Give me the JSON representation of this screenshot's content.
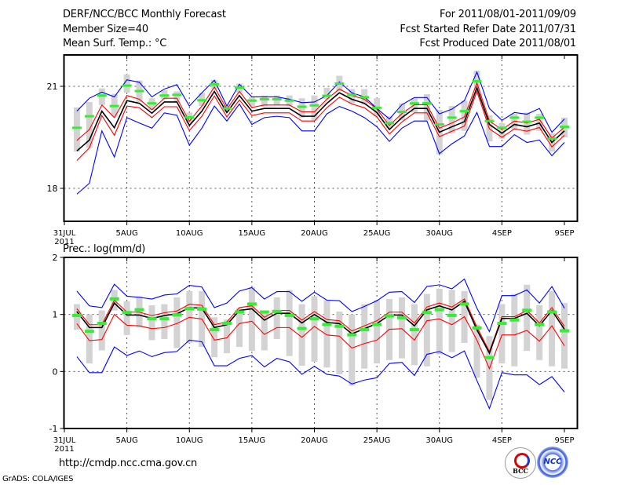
{
  "header": {
    "title": "DERF/NCC/BCC Monthly Forecast",
    "member_size": "Member Size=40",
    "variable": "Mean Surf. Temp.: °C",
    "period": "For 2011/08/01-2011/09/09",
    "started": "Fcst Started Refer Date 2011/07/31",
    "produced": "Fcst Produced Date 2011/08/01"
  },
  "footer": {
    "url": "http://cmdp.ncc.cma.gov.cn",
    "grads": "GrADS: COLA/IGES",
    "logos": [
      "BCC",
      "NCC"
    ]
  },
  "colors": {
    "mean": "#000000",
    "std": "#ff0000",
    "range": "#0000ff",
    "obs": "#33ee33",
    "clim": "#d3d3d3",
    "grid": "#555555"
  },
  "chart_data": [
    {
      "type": "line",
      "title": "Mean Surf. Temp.: °C",
      "xlabel": "",
      "ylabel": "",
      "x_tick_labels": [
        "31JUL",
        "5AUG",
        "10AUG",
        "15AUG",
        "20AUG",
        "25AUG",
        "30AUG",
        "4SEP",
        "9SEP"
      ],
      "x_year_label": "2011",
      "y_tick_labels": [
        "21",
        "18"
      ],
      "y_ticks": [
        21,
        18
      ],
      "ylim": [
        17.03,
        21.92
      ],
      "x_days_from_31jul": [
        1,
        40
      ],
      "grid": true,
      "series": [
        {
          "name": "ensemble max",
          "color": "#0000ff",
          "values": [
            20.27,
            20.65,
            20.83,
            20.69,
            21.19,
            21.12,
            20.69,
            20.92,
            21.05,
            20.42,
            20.81,
            21.18,
            20.42,
            21.06,
            20.69,
            20.69,
            20.69,
            20.62,
            20.52,
            20.54,
            20.73,
            21.13,
            20.81,
            20.69,
            20.35,
            20.04,
            20.46,
            20.67,
            20.67,
            20.19,
            20.33,
            20.58,
            21.42,
            20.35,
            20.0,
            20.23,
            20.18,
            20.35,
            19.65,
            20.04
          ]
        },
        {
          "name": "ensemble min",
          "color": "#0000ff",
          "values": [
            17.83,
            18.15,
            19.69,
            18.92,
            20.08,
            19.92,
            19.77,
            20.22,
            20.15,
            19.27,
            19.77,
            20.42,
            19.98,
            20.48,
            19.88,
            20.08,
            20.12,
            20.08,
            19.69,
            19.69,
            20.19,
            20.41,
            20.27,
            20.08,
            19.81,
            19.38,
            19.77,
            19.98,
            19.98,
            19.02,
            19.31,
            19.54,
            20.23,
            19.23,
            19.23,
            19.58,
            19.35,
            19.42,
            18.96,
            19.35
          ]
        },
        {
          "name": "mean + std",
          "color": "#ff0000",
          "values": [
            19.41,
            19.73,
            20.45,
            20.08,
            20.73,
            20.62,
            20.31,
            20.65,
            20.65,
            19.97,
            20.42,
            20.98,
            20.33,
            20.85,
            20.38,
            20.45,
            20.45,
            20.45,
            20.25,
            20.25,
            20.62,
            20.92,
            20.73,
            20.62,
            20.33,
            19.85,
            20.2,
            20.46,
            20.46,
            19.77,
            19.92,
            20.1,
            21.1,
            19.98,
            19.73,
            19.98,
            19.92,
            20.03,
            19.48,
            19.8
          ]
        },
        {
          "name": "mean - std",
          "color": "#ff0000",
          "values": [
            18.82,
            19.19,
            20.14,
            19.56,
            20.42,
            20.37,
            20.08,
            20.4,
            20.4,
            19.7,
            20.12,
            20.72,
            20.1,
            20.6,
            20.14,
            20.22,
            20.22,
            20.22,
            19.98,
            19.98,
            20.37,
            20.68,
            20.48,
            20.37,
            20.1,
            19.6,
            19.95,
            20.22,
            20.22,
            19.52,
            19.68,
            19.83,
            20.85,
            19.75,
            19.5,
            19.75,
            19.68,
            19.79,
            19.22,
            19.56
          ]
        },
        {
          "name": "ensemble mean",
          "color": "#000000",
          "values": [
            19.1,
            19.42,
            20.27,
            19.78,
            20.58,
            20.5,
            20.21,
            20.54,
            20.54,
            19.85,
            20.27,
            20.85,
            20.23,
            20.73,
            20.27,
            20.35,
            20.35,
            20.35,
            20.12,
            20.12,
            20.5,
            20.81,
            20.62,
            20.5,
            20.23,
            19.73,
            20.08,
            20.35,
            20.35,
            19.65,
            19.81,
            19.96,
            20.96,
            19.88,
            19.62,
            19.88,
            19.81,
            19.92,
            19.35,
            19.69
          ]
        }
      ],
      "obs": [
        19.78,
        20.12,
        20.73,
        20.42,
        21.02,
        20.86,
        20.5,
        20.73,
        20.75,
        20.09,
        20.59,
        21.06,
        20.35,
        20.96,
        20.58,
        20.62,
        20.62,
        20.58,
        20.4,
        20.44,
        20.72,
        21.08,
        20.75,
        20.68,
        20.37,
        19.92,
        20.25,
        20.5,
        20.5,
        19.88,
        20.08,
        20.27,
        21.15,
        19.98,
        19.78,
        20.08,
        19.96,
        20.08,
        19.46,
        19.81
      ],
      "clim_hi": [
        20.38,
        20.54,
        20.94,
        20.78,
        21.35,
        21.17,
        20.65,
        20.88,
        20.85,
        20.23,
        20.81,
        21.19,
        20.45,
        21.08,
        20.69,
        20.73,
        20.73,
        20.73,
        20.65,
        20.73,
        20.96,
        21.31,
        20.92,
        20.92,
        20.65,
        20.12,
        20.5,
        20.65,
        20.77,
        20.31,
        20.42,
        20.58,
        21.46,
        20.15,
        19.92,
        20.19,
        20.23,
        20.19,
        19.62,
        20.08
      ],
      "clim_lo": [
        19.08,
        19.19,
        20.45,
        20.12,
        20.81,
        20.54,
        20.31,
        20.62,
        20.54,
        19.92,
        20.42,
        20.92,
        20.23,
        20.81,
        20.42,
        20.42,
        20.46,
        20.42,
        20.08,
        20.0,
        20.62,
        20.85,
        20.5,
        20.46,
        20.12,
        19.77,
        20.0,
        20.23,
        20.0,
        19.0,
        19.62,
        19.69,
        20.88,
        19.38,
        19.46,
        19.73,
        19.58,
        19.69,
        19.08,
        19.5
      ]
    },
    {
      "type": "line",
      "title": "Prec.: log(mm/d)",
      "xlabel": "",
      "ylabel": "",
      "x_tick_labels": [
        "31JUL",
        "5AUG",
        "10AUG",
        "15AUG",
        "20AUG",
        "25AUG",
        "30AUG",
        "4SEP",
        "9SEP"
      ],
      "x_year_label": "2011",
      "y_tick_labels": [
        "2",
        "1",
        "0",
        "-1"
      ],
      "y_ticks": [
        2,
        1,
        0,
        -1
      ],
      "ylim": [
        -1,
        2
      ],
      "x_days_from_31jul": [
        1,
        40
      ],
      "grid": true,
      "series": [
        {
          "name": "ensemble max",
          "color": "#0000ff",
          "values": [
            1.41,
            1.15,
            1.12,
            1.53,
            1.32,
            1.3,
            1.27,
            1.34,
            1.36,
            1.51,
            1.48,
            1.12,
            1.2,
            1.41,
            1.47,
            1.27,
            1.4,
            1.4,
            1.23,
            1.39,
            1.25,
            1.24,
            1.05,
            1.14,
            1.24,
            1.39,
            1.4,
            1.21,
            1.49,
            1.52,
            1.45,
            1.62,
            1.11,
            0.7,
            1.33,
            1.33,
            1.43,
            1.2,
            1.49,
            1.11
          ]
        },
        {
          "name": "ensemble min",
          "color": "#0000ff",
          "values": [
            0.26,
            -0.02,
            -0.02,
            0.43,
            0.28,
            0.36,
            0.26,
            0.33,
            0.35,
            0.55,
            0.52,
            0.1,
            0.1,
            0.23,
            0.28,
            0.08,
            0.23,
            0.17,
            -0.05,
            0.09,
            -0.05,
            -0.08,
            -0.22,
            -0.15,
            -0.11,
            0.14,
            0.16,
            -0.07,
            0.3,
            0.35,
            0.24,
            0.36,
            -0.16,
            -0.65,
            -0.02,
            -0.06,
            -0.06,
            -0.23,
            -0.09,
            -0.36
          ]
        },
        {
          "name": "mean + std",
          "color": "#ff0000",
          "values": [
            1.1,
            0.82,
            0.82,
            1.25,
            1.04,
            1.04,
            0.98,
            1.03,
            1.06,
            1.18,
            1.16,
            0.82,
            0.87,
            1.12,
            1.15,
            0.95,
            1.07,
            1.07,
            0.9,
            1.05,
            0.91,
            0.89,
            0.71,
            0.8,
            0.89,
            1.04,
            1.04,
            0.85,
            1.13,
            1.2,
            1.13,
            1.27,
            0.78,
            0.35,
            0.96,
            0.96,
            1.07,
            0.85,
            1.12,
            0.79
          ]
        },
        {
          "name": "mean - std",
          "color": "#ff0000",
          "values": [
            0.84,
            0.54,
            0.56,
            1.0,
            0.81,
            0.8,
            0.75,
            0.77,
            0.84,
            0.95,
            0.92,
            0.55,
            0.59,
            0.84,
            0.88,
            0.65,
            0.77,
            0.77,
            0.6,
            0.79,
            0.64,
            0.62,
            0.41,
            0.49,
            0.55,
            0.74,
            0.75,
            0.55,
            0.89,
            0.92,
            0.82,
            0.96,
            0.55,
            0.05,
            0.64,
            0.64,
            0.72,
            0.53,
            0.8,
            0.45
          ]
        },
        {
          "name": "ensemble mean",
          "color": "#000000",
          "values": [
            1.05,
            0.77,
            0.77,
            1.2,
            0.99,
            0.99,
            0.93,
            0.98,
            1.01,
            1.12,
            1.11,
            0.77,
            0.82,
            1.07,
            1.1,
            0.9,
            1.02,
            1.02,
            0.85,
            1.0,
            0.86,
            0.84,
            0.66,
            0.75,
            0.84,
            0.99,
            0.99,
            0.8,
            1.08,
            1.15,
            1.08,
            1.23,
            0.73,
            0.32,
            0.93,
            0.93,
            1.02,
            0.8,
            1.07,
            0.74
          ]
        }
      ],
      "obs": [
        0.99,
        0.71,
        0.85,
        1.28,
        1.04,
        1.09,
        0.93,
        0.93,
        1.0,
        1.11,
        1.1,
        0.74,
        0.85,
        1.05,
        1.19,
        1.05,
        1.06,
        0.99,
        0.76,
        0.93,
        0.83,
        0.8,
        0.65,
        0.74,
        0.83,
        0.98,
        0.95,
        0.74,
        1.04,
        1.09,
        0.99,
        1.19,
        0.77,
        0.25,
        0.85,
        0.91,
        1.08,
        0.83,
        1.05,
        0.72
      ],
      "clim_hi": [
        1.18,
        1.0,
        1.07,
        1.43,
        1.23,
        1.32,
        1.16,
        1.18,
        1.3,
        1.41,
        1.41,
        0.95,
        0.91,
        1.11,
        1.48,
        1.05,
        1.3,
        1.43,
        1.18,
        1.32,
        1.25,
        1.05,
        1.0,
        1.18,
        1.25,
        1.27,
        1.3,
        1.18,
        1.36,
        1.45,
        1.43,
        1.41,
        0.82,
        0.62,
        1.18,
        1.36,
        1.52,
        1.16,
        1.41,
        1.2
      ],
      "clim_lo": [
        0.73,
        0.14,
        0.37,
        1.07,
        0.64,
        0.77,
        0.55,
        0.57,
        0.41,
        0.5,
        0.43,
        0.25,
        0.32,
        0.43,
        0.36,
        0.37,
        0.57,
        0.27,
        0.1,
        0.17,
        0.07,
        -0.05,
        -0.25,
        0.05,
        0.14,
        0.2,
        0.23,
        0.11,
        0.09,
        0.3,
        0.34,
        0.5,
        -0.11,
        -0.5,
        0.14,
        0.09,
        0.36,
        0.2,
        0.09,
        0.05
      ]
    }
  ]
}
